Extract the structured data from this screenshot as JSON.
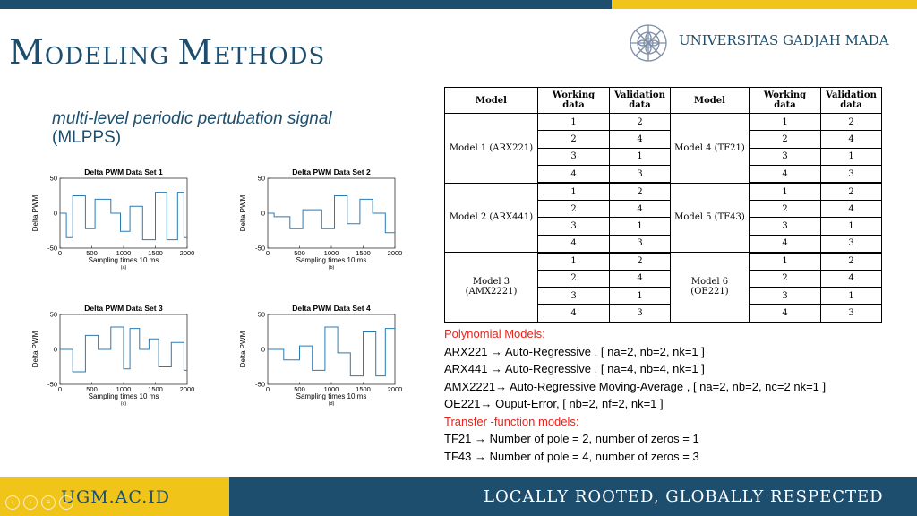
{
  "header": {
    "title_initial_1": "M",
    "title_rest_1": "ODELING ",
    "title_initial_2": "M",
    "title_rest_2": "ETHODS",
    "university_name": "UNIVERSITAS GADJAH MADA",
    "colors": {
      "navy": "#1d4e6e",
      "gold": "#f0c419",
      "red": "#e8231c"
    }
  },
  "subtitle": {
    "line1": "multi-level periodic pertubation signal",
    "line2": "(MLPPS)"
  },
  "chart_data": [
    {
      "type": "line",
      "title": "Delta PWM Data Set 1",
      "xlabel": "Sampling times 10 ms",
      "ylabel": "Delta PWM",
      "caption": "(a)",
      "xlim": [
        0,
        2000
      ],
      "ylim": [
        -50,
        50
      ],
      "xticks": [
        0,
        500,
        1000,
        1500,
        2000
      ],
      "yticks": [
        -50,
        0,
        50
      ],
      "x": [
        0,
        100,
        100,
        200,
        200,
        400,
        400,
        550,
        550,
        800,
        800,
        950,
        950,
        1100,
        1100,
        1300,
        1300,
        1500,
        1500,
        1680,
        1680,
        1850,
        1850,
        1950,
        1950,
        2000
      ],
      "y": [
        0,
        0,
        -35,
        -35,
        25,
        25,
        -22,
        -22,
        20,
        20,
        0,
        0,
        -26,
        -26,
        10,
        10,
        -38,
        -38,
        30,
        30,
        -38,
        -38,
        30,
        30,
        -35,
        -35
      ]
    },
    {
      "type": "line",
      "title": "Delta PWM Data Set 2",
      "xlabel": "Sampling times 10 ms",
      "ylabel": "Delta PWM",
      "caption": "(b)",
      "xlim": [
        0,
        2000
      ],
      "ylim": [
        -50,
        50
      ],
      "xticks": [
        0,
        500,
        1000,
        1500,
        2000
      ],
      "yticks": [
        -50,
        0,
        50
      ],
      "x": [
        0,
        100,
        100,
        350,
        350,
        550,
        550,
        850,
        850,
        1050,
        1050,
        1250,
        1250,
        1450,
        1450,
        1650,
        1650,
        1850,
        1850,
        2000
      ],
      "y": [
        0,
        0,
        -5,
        -5,
        -22,
        -22,
        5,
        5,
        -22,
        -22,
        25,
        25,
        -15,
        -15,
        20,
        20,
        0,
        0,
        -28,
        -28
      ]
    },
    {
      "type": "line",
      "title": "Delta PWM Data Set 3",
      "xlabel": "Sampling times 10 ms",
      "ylabel": "Delta PWM",
      "caption": "(c)",
      "xlim": [
        0,
        2000
      ],
      "ylim": [
        -50,
        50
      ],
      "xticks": [
        0,
        500,
        1000,
        1500,
        2000
      ],
      "yticks": [
        -50,
        0,
        50
      ],
      "x": [
        0,
        200,
        200,
        400,
        400,
        600,
        600,
        800,
        800,
        1000,
        1000,
        1100,
        1100,
        1250,
        1250,
        1400,
        1400,
        1550,
        1550,
        1750,
        1750,
        1950,
        1950,
        2000
      ],
      "y": [
        0,
        0,
        -32,
        -32,
        20,
        20,
        0,
        0,
        32,
        32,
        -28,
        -28,
        30,
        30,
        0,
        0,
        15,
        15,
        -25,
        -25,
        10,
        10,
        -30,
        -30
      ]
    },
    {
      "type": "line",
      "title": "Delta PWM Data Set 4",
      "xlabel": "Sampling times 10 ms",
      "ylabel": "Delta PWM",
      "caption": "(d)",
      "xlim": [
        0,
        2000
      ],
      "ylim": [
        -50,
        50
      ],
      "xticks": [
        0,
        500,
        1000,
        1500,
        2000
      ],
      "yticks": [
        -50,
        0,
        50
      ],
      "x": [
        0,
        250,
        250,
        500,
        500,
        700,
        700,
        900,
        900,
        1100,
        1100,
        1300,
        1300,
        1500,
        1500,
        1700,
        1700,
        1850,
        1850,
        2000
      ],
      "y": [
        0,
        0,
        -15,
        -15,
        5,
        5,
        -30,
        -30,
        32,
        32,
        -5,
        -5,
        -38,
        -38,
        25,
        25,
        -38,
        -38,
        30,
        30
      ]
    }
  ],
  "table": {
    "headers": [
      "Model",
      "Working data",
      "Validation data",
      "Model",
      "Working data",
      "Validation data"
    ],
    "groups": [
      {
        "left_model": "Model 1 (ARX221)",
        "right_model": "Model 4 (TF21)",
        "rows": [
          [
            "1",
            "2",
            "1",
            "2"
          ],
          [
            "2",
            "4",
            "2",
            "4"
          ],
          [
            "3",
            "1",
            "3",
            "1"
          ],
          [
            "4",
            "3",
            "4",
            "3"
          ]
        ]
      },
      {
        "left_model": "Model 2 (ARX441)",
        "right_model": "Model 5 (TF43)",
        "rows": [
          [
            "1",
            "2",
            "1",
            "2"
          ],
          [
            "2",
            "4",
            "2",
            "4"
          ],
          [
            "3",
            "1",
            "3",
            "1"
          ],
          [
            "4",
            "3",
            "4",
            "3"
          ]
        ]
      },
      {
        "left_model": "Model 3 (AMX2221)",
        "right_model": "Model 6 (OE221)",
        "rows": [
          [
            "1",
            "2",
            "1",
            "2"
          ],
          [
            "2",
            "4",
            "2",
            "4"
          ],
          [
            "3",
            "1",
            "3",
            "1"
          ],
          [
            "4",
            "3",
            "4",
            "3"
          ]
        ]
      }
    ]
  },
  "notes": {
    "polynomial_heading": "Polynomial Models:",
    "arx221": "ARX221 → Auto-Regressive , [ na=2, nb=2, nk=1 ]",
    "arx441": "ARX441 → Auto-Regressive , [ na=4, nb=4, nk=1 ]",
    "amx2221": "AMX2221→ Auto-Regressive Moving-Average , [ na=2, nb=2, nc=2 nk=1 ]",
    "oe221": "OE221→ Ouput-Error, [ nb=2, nf=2, nk=1 ]",
    "transfer_heading": "Transfer -function models:",
    "tf21": "TF21 → Number of pole = 2, number of zeros = 1",
    "tf43": "TF43 → Number of pole = 4, number of zeros = 3"
  },
  "footer": {
    "site": "UGM.AC.ID",
    "tagline": "LOCALLY ROOTED, GLOBALLY RESPECTED"
  },
  "nav": {
    "prev_glyph": "‹",
    "play_glyph": "›",
    "menu_glyph": "≡",
    "zoom_glyph": "+"
  }
}
